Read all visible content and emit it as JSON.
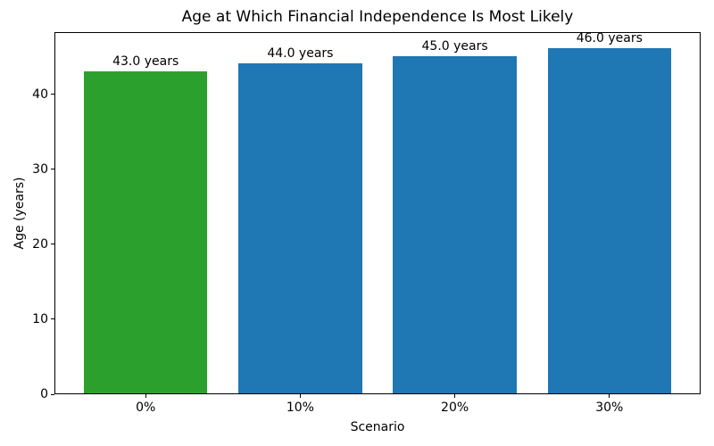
{
  "chart_data": {
    "type": "bar",
    "title": "Age at Which Financial Independence Is Most Likely",
    "xlabel": "Scenario",
    "ylabel": "Age (years)",
    "categories": [
      "0%",
      "10%",
      "20%",
      "30%"
    ],
    "values": [
      43.0,
      44.0,
      45.0,
      46.0
    ],
    "bar_labels": [
      "43.0 years",
      "44.0 years",
      "45.0 years",
      "46.0 years"
    ],
    "bar_colors": [
      "#2ca02c",
      "#1f77b4",
      "#1f77b4",
      "#1f77b4"
    ],
    "ylim": [
      0,
      48.3
    ],
    "yticks": [
      0,
      10,
      20,
      30,
      40
    ],
    "grid": false,
    "legend_position": "none",
    "axis_color": "#000000",
    "background_color": "#ffffff"
  }
}
